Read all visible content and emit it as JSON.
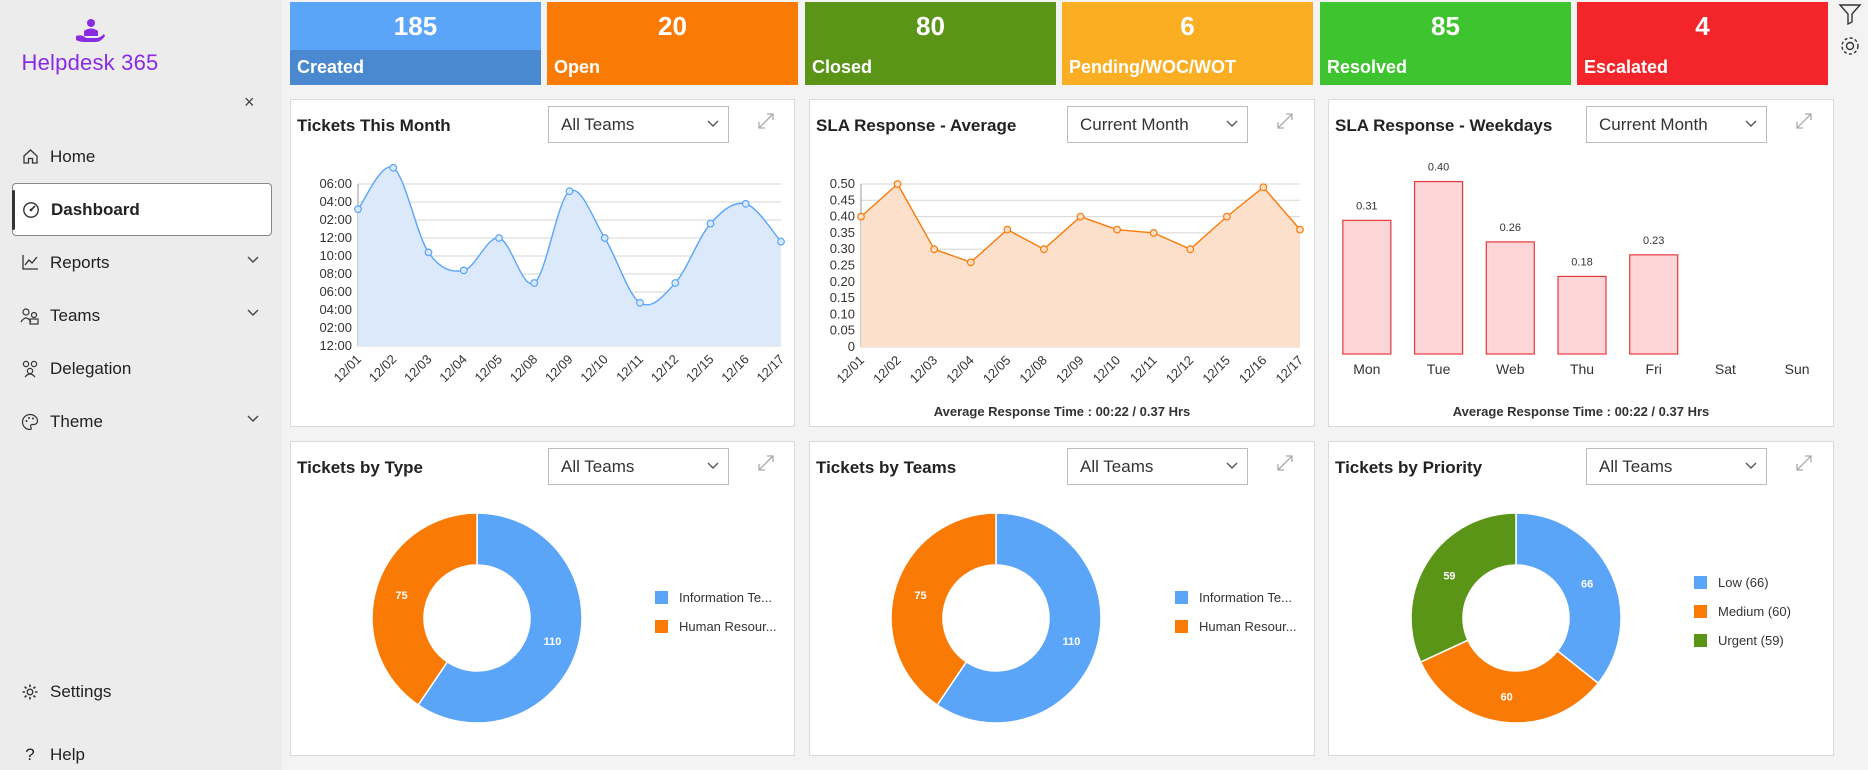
{
  "app": {
    "name": "Helpdesk 365",
    "close_label": "×"
  },
  "sidebar": {
    "items": [
      {
        "label": "Home",
        "icon": "home-icon"
      },
      {
        "label": "Dashboard",
        "icon": "dashboard-icon",
        "active": true
      },
      {
        "label": "Reports",
        "icon": "chart-line-icon",
        "expandable": true
      },
      {
        "label": "Teams",
        "icon": "teams-icon",
        "expandable": true
      },
      {
        "label": "Delegation",
        "icon": "delegation-icon"
      },
      {
        "label": "Theme",
        "icon": "palette-icon",
        "expandable": true
      }
    ],
    "settings_label": "Settings",
    "help_label": "Help"
  },
  "kpis": [
    {
      "value": "185",
      "label": "Created",
      "top": "#5aa5f8",
      "bottom": "#4a88d0"
    },
    {
      "value": "20",
      "label": "Open",
      "top": "#fa7a06",
      "bottom": "#fa7a06"
    },
    {
      "value": "80",
      "label": "Closed",
      "top": "#5a9518",
      "bottom": "#5a9518"
    },
    {
      "value": "6",
      "label": "Pending/WOC/WOT",
      "top": "#fbae22",
      "bottom": "#fbae22"
    },
    {
      "value": "85",
      "label": "Resolved",
      "top": "#3ec42e",
      "bottom": "#3ec42e"
    },
    {
      "value": "4",
      "label": "Escalated",
      "top": "#f3252a",
      "bottom": "#f3252a"
    }
  ],
  "cards": {
    "tickets_month": {
      "title": "Tickets This Month",
      "filter": "All Teams"
    },
    "sla_avg": {
      "title": "SLA Response - Average",
      "filter": "Current Month",
      "note": "Average Response Time : 00:22 / 0.37 Hrs"
    },
    "sla_weekdays": {
      "title": "SLA Response - Weekdays",
      "filter": "Current Month",
      "note": "Average Response Time : 00:22 / 0.37 Hrs"
    },
    "by_type": {
      "title": "Tickets by Type",
      "filter": "All Teams"
    },
    "by_teams": {
      "title": "Tickets by Teams",
      "filter": "All Teams"
    },
    "by_priority": {
      "title": "Tickets by Priority",
      "filter": "All Teams"
    }
  },
  "chart_data": [
    {
      "id": "tickets_month",
      "type": "area",
      "categories": [
        "12/01",
        "12/02",
        "12/03",
        "12/04",
        "12/05",
        "12/08",
        "12/09",
        "12/10",
        "12/11",
        "12/12",
        "12/15",
        "12/16",
        "12/17"
      ],
      "y_ticks": [
        "06:00",
        "04:00",
        "02:00",
        "12:00",
        "10:00",
        "08:00",
        "06:00",
        "04:00",
        "02:00",
        "12:00"
      ],
      "values": [
        7.6,
        9.9,
        5.2,
        4.2,
        6.0,
        3.5,
        8.6,
        6.0,
        2.4,
        3.5,
        6.8,
        7.9,
        5.8
      ],
      "ylim": [
        0,
        9
      ],
      "grid": true
    },
    {
      "id": "sla_avg",
      "type": "area",
      "categories": [
        "12/01",
        "12/02",
        "12/03",
        "12/04",
        "12/05",
        "12/08",
        "12/09",
        "12/10",
        "12/11",
        "12/12",
        "12/15",
        "12/16",
        "12/17"
      ],
      "y_ticks": [
        "0.50",
        "0.45",
        "0.40",
        "0.35",
        "0.30",
        "0.25",
        "0.20",
        "0.15",
        "0.10",
        "0.05",
        "0"
      ],
      "values": [
        0.4,
        0.5,
        0.3,
        0.26,
        0.36,
        0.3,
        0.4,
        0.36,
        0.35,
        0.3,
        0.4,
        0.49,
        0.36
      ],
      "ylim": [
        0,
        0.5
      ],
      "grid": true
    },
    {
      "id": "sla_weekdays",
      "type": "bar",
      "categories": [
        "Mon",
        "Tue",
        "Web",
        "Thu",
        "Fri",
        "Sat",
        "Sun"
      ],
      "values": [
        0.31,
        0.4,
        0.26,
        0.18,
        0.23,
        null,
        null
      ],
      "labels": [
        "0.31",
        "0.40",
        "0.26",
        "0.18",
        "0.23",
        "",
        ""
      ],
      "ylim": [
        0,
        0.45
      ]
    },
    {
      "id": "by_type",
      "type": "pie",
      "slices": [
        {
          "label": "Information Te...",
          "value": 110,
          "color": "#5aa5f8"
        },
        {
          "label": "Human Resour...",
          "value": 75,
          "color": "#fa7a06"
        }
      ]
    },
    {
      "id": "by_teams",
      "type": "pie",
      "slices": [
        {
          "label": "Information Te...",
          "value": 110,
          "color": "#5aa5f8"
        },
        {
          "label": "Human Resour...",
          "value": 75,
          "color": "#fa7a06"
        }
      ]
    },
    {
      "id": "by_priority",
      "type": "pie",
      "slices": [
        {
          "label": "Low (66)",
          "value": 66,
          "color": "#5aa5f8"
        },
        {
          "label": "Medium (60)",
          "value": 60,
          "color": "#fa7a06"
        },
        {
          "label": "Urgent (59)",
          "value": 59,
          "color": "#5a9518"
        }
      ]
    }
  ]
}
